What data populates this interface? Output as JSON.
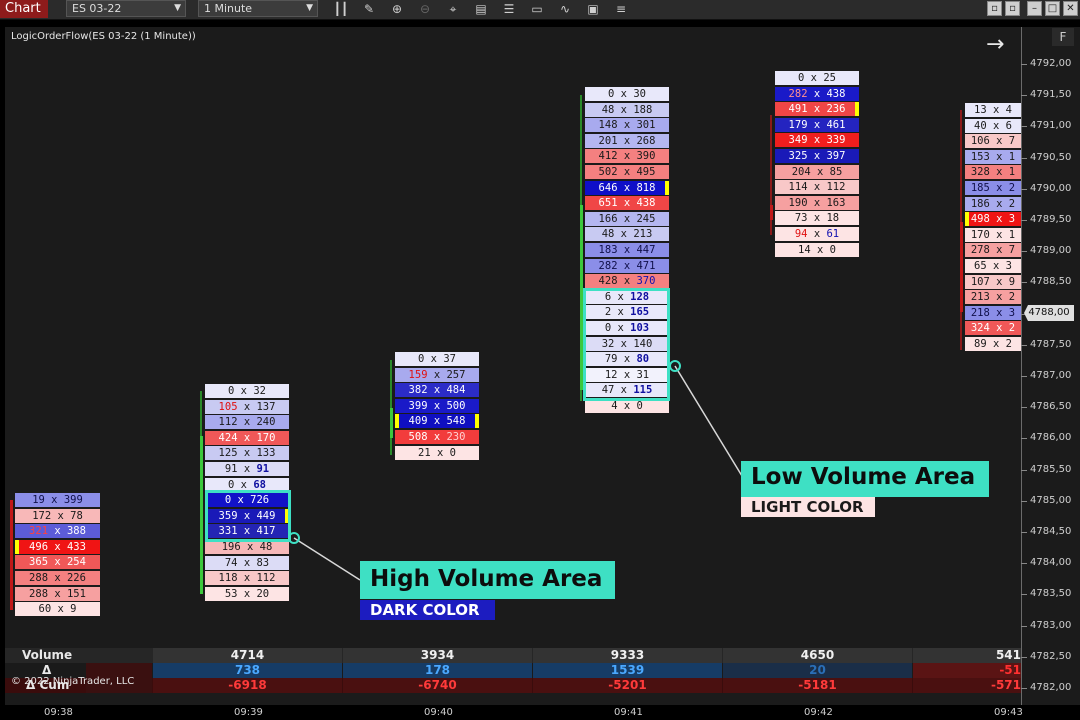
{
  "toolbar": {
    "app_tab": "Chart",
    "instrument": "ES 03-22",
    "interval": "1 Minute",
    "icons": [
      "bar-style-icon",
      "draw-icon",
      "zoom-in-icon",
      "zoom-out-icon",
      "crosshair-icon",
      "data-box-icon",
      "properties-icon",
      "templates-icon",
      "strategy-icon",
      "indicators-icon",
      "menu-icon"
    ],
    "window_buttons": [
      "minimize",
      "restore",
      "close"
    ]
  },
  "chart": {
    "title": "LogicOrderFlow(ES 03-22 (1 Minute))",
    "f_button": "F",
    "copyright": "© 2022 NinjaTrader, LLC",
    "current_price": "4788,00"
  },
  "price_axis": [
    "4792,00",
    "4791,50",
    "4791,00",
    "4790,50",
    "4790,00",
    "4789,50",
    "4789,00",
    "4788,50",
    "4788,00",
    "4787,50",
    "4787,00",
    "4786,50",
    "4786,00",
    "4785,50",
    "4785,00",
    "4784,50",
    "4784,00",
    "4783,50",
    "4783,00",
    "4782,50",
    "4782,00"
  ],
  "time_axis": [
    "09:38",
    "09:39",
    "09:40",
    "09:41",
    "09:42",
    "09:43"
  ],
  "bars": [
    {
      "cells": [
        {
          "bid": "19",
          "ask": "399",
          "bg": "#8b8ee8",
          "fg": "#10104a"
        },
        {
          "bid": "172",
          "ask": "78",
          "bg": "#f8b8b8",
          "fg": "#1a1a1a"
        },
        {
          "bid": "321",
          "ask": "388",
          "bg": "#5c5cd8",
          "fg": "#ffffff",
          "bid_fg": "#ff4040"
        },
        {
          "bid": "496",
          "ask": "433",
          "bg": "#f01414",
          "fg": "#ffffff",
          "marker": "left"
        },
        {
          "bid": "365",
          "ask": "254",
          "bg": "#f05858",
          "fg": "#ffffff"
        },
        {
          "bid": "288",
          "ask": "226",
          "bg": "#f48080",
          "fg": "#1a1a1a"
        },
        {
          "bid": "288",
          "ask": "151",
          "bg": "#f6a0a0",
          "fg": "#1a1a1a"
        },
        {
          "bid": "60",
          "ask": "9",
          "bg": "#fde4e4",
          "fg": "#1a1a1a"
        }
      ]
    },
    {
      "cells": [
        {
          "bid": "0",
          "ask": "32",
          "bg": "#e8e8fa",
          "fg": "#1a1a1a"
        },
        {
          "bid": "105",
          "ask": "137",
          "bg": "#c8caf2",
          "fg": "#1a1a1a",
          "bid_fg": "#e01010"
        },
        {
          "bid": "112",
          "ask": "240",
          "bg": "#a8aaee",
          "fg": "#1a1a1a"
        },
        {
          "bid": "424",
          "ask": "170",
          "bg": "#f05858",
          "fg": "#ffffff"
        },
        {
          "bid": "125",
          "ask": "133",
          "bg": "#c8caf2",
          "fg": "#1a1a1a"
        },
        {
          "bid": "91",
          "ask": "91",
          "bg": "#dcdcf6",
          "fg": "#1a1a1a",
          "ask_bold": true
        },
        {
          "bid": "0",
          "ask": "68",
          "bg": "#e8e8fa",
          "fg": "#1a1a1a",
          "ask_bold": true
        },
        {
          "bid": "0",
          "ask": "726",
          "bg": "#1212c8",
          "fg": "#ffffff"
        },
        {
          "bid": "359",
          "ask": "449",
          "bg": "#1a1ab8",
          "fg": "#ffffff",
          "marker": "right"
        },
        {
          "bid": "331",
          "ask": "417",
          "bg": "#2424b4",
          "fg": "#ffffff"
        },
        {
          "bid": "196",
          "ask": "48",
          "bg": "#f6b8b8",
          "fg": "#1a1a1a"
        },
        {
          "bid": "74",
          "ask": "83",
          "bg": "#dcdcf6",
          "fg": "#1a1a1a"
        },
        {
          "bid": "118",
          "ask": "112",
          "bg": "#f8c8c8",
          "fg": "#1a1a1a"
        },
        {
          "bid": "53",
          "ask": "20",
          "bg": "#fde4e4",
          "fg": "#1a1a1a"
        }
      ]
    },
    {
      "cells": [
        {
          "bid": "0",
          "ask": "37",
          "bg": "#e8e8fa",
          "fg": "#1a1a1a"
        },
        {
          "bid": "159",
          "ask": "257",
          "bg": "#a8aaee",
          "fg": "#1a1a1a",
          "bid_fg": "#e01010"
        },
        {
          "bid": "382",
          "ask": "484",
          "bg": "#2c2cc8",
          "fg": "#ffffff"
        },
        {
          "bid": "399",
          "ask": "500",
          "bg": "#1a1ac8",
          "fg": "#ffffff"
        },
        {
          "bid": "409",
          "ask": "548",
          "bg": "#0f0fc0",
          "fg": "#ffffff",
          "marker": "both"
        },
        {
          "bid": "508",
          "ask": "230",
          "bg": "#f23c3c",
          "fg": "#ffffff",
          "ask_fg": "#ffd0d0"
        },
        {
          "bid": "21",
          "ask": "0",
          "bg": "#fde4e4",
          "fg": "#1a1a1a"
        }
      ]
    },
    {
      "cells": [
        {
          "bid": "0",
          "ask": "30",
          "bg": "#e8e8fa",
          "fg": "#1a1a1a"
        },
        {
          "bid": "48",
          "ask": "188",
          "bg": "#c8caf2",
          "fg": "#1a1a1a"
        },
        {
          "bid": "148",
          "ask": "301",
          "bg": "#a8aaee",
          "fg": "#1a1a1a"
        },
        {
          "bid": "201",
          "ask": "268",
          "bg": "#b4b6f0",
          "fg": "#1a1a1a"
        },
        {
          "bid": "412",
          "ask": "390",
          "bg": "#f48080",
          "fg": "#1a1a1a"
        },
        {
          "bid": "502",
          "ask": "495",
          "bg": "#f48080",
          "fg": "#1a1a1a"
        },
        {
          "bid": "646",
          "ask": "818",
          "bg": "#0f0fc8",
          "fg": "#ffffff",
          "marker": "right"
        },
        {
          "bid": "651",
          "ask": "438",
          "bg": "#f04646",
          "fg": "#ffffff"
        },
        {
          "bid": "166",
          "ask": "245",
          "bg": "#b4b6f0",
          "fg": "#1a1a1a"
        },
        {
          "bid": "48",
          "ask": "213",
          "bg": "#c8caf2",
          "fg": "#1a1a1a"
        },
        {
          "bid": "183",
          "ask": "447",
          "bg": "#8b8ee8",
          "fg": "#10104a"
        },
        {
          "bid": "282",
          "ask": "471",
          "bg": "#8b8ee8",
          "fg": "#10104a"
        },
        {
          "bid": "428",
          "ask": "370",
          "bg": "#f48080",
          "fg": "#1a1a1a",
          "ask_fg": "#1010b0"
        },
        {
          "bid": "6",
          "ask": "128",
          "bg": "#e8e8fa",
          "fg": "#1a1a1a",
          "ask_bold": true
        },
        {
          "bid": "2",
          "ask": "165",
          "bg": "#e8e8fa",
          "fg": "#1a1a1a",
          "ask_bold": true
        },
        {
          "bid": "0",
          "ask": "103",
          "bg": "#e8e8fa",
          "fg": "#1a1a1a",
          "ask_bold": true
        },
        {
          "bid": "32",
          "ask": "140",
          "bg": "#dcdcf6",
          "fg": "#1a1a1a"
        },
        {
          "bid": "79",
          "ask": "80",
          "bg": "#e8e8fa",
          "fg": "#1a1a1a",
          "ask_bold": true
        },
        {
          "bid": "12",
          "ask": "31",
          "bg": "#f2f2fc",
          "fg": "#1a1a1a"
        },
        {
          "bid": "47",
          "ask": "115",
          "bg": "#e8e8fa",
          "fg": "#1a1a1a",
          "ask_bold": true
        },
        {
          "bid": "4",
          "ask": "0",
          "bg": "#fde4e4",
          "fg": "#1a1a1a"
        }
      ]
    },
    {
      "cells": [
        {
          "bid": "0",
          "ask": "25",
          "bg": "#e8e8fa",
          "fg": "#1a1a1a"
        },
        {
          "bid": "282",
          "ask": "438",
          "bg": "#1a1ac8",
          "fg": "#ffffff",
          "bid_fg": "#ff9090"
        },
        {
          "bid": "491",
          "ask": "236",
          "bg": "#f04646",
          "fg": "#ffffff",
          "marker": "right"
        },
        {
          "bid": "179",
          "ask": "461",
          "bg": "#2424c0",
          "fg": "#ffffff"
        },
        {
          "bid": "349",
          "ask": "339",
          "bg": "#f01e1e",
          "fg": "#ffffff"
        },
        {
          "bid": "325",
          "ask": "397",
          "bg": "#1a1ab8",
          "fg": "#ffffff"
        },
        {
          "bid": "204",
          "ask": "85",
          "bg": "#f6a0a0",
          "fg": "#1a1a1a"
        },
        {
          "bid": "114",
          "ask": "112",
          "bg": "#f8c8c8",
          "fg": "#1a1a1a"
        },
        {
          "bid": "190",
          "ask": "163",
          "bg": "#f6a0a0",
          "fg": "#1a1a1a"
        },
        {
          "bid": "73",
          "ask": "18",
          "bg": "#fde4e4",
          "fg": "#1a1a1a"
        },
        {
          "bid": "94",
          "ask": "61",
          "bg": "#fde4e4",
          "fg": "#1a1a1a",
          "bid_fg": "#e01010",
          "ask_fg": "#1010b0"
        },
        {
          "bid": "14",
          "ask": "0",
          "bg": "#fde4e4",
          "fg": "#1a1a1a"
        }
      ]
    },
    {
      "cells": [
        {
          "bid": "13",
          "ask": "4",
          "bg": "#e8e8fa",
          "fg": "#1a1a1a"
        },
        {
          "bid": "40",
          "ask": "6",
          "bg": "#e8e8fa",
          "fg": "#1a1a1a"
        },
        {
          "bid": "106",
          "ask": "7",
          "bg": "#f8c8c8",
          "fg": "#1a1a1a"
        },
        {
          "bid": "153",
          "ask": "1",
          "bg": "#a8aaee",
          "fg": "#1a1a1a"
        },
        {
          "bid": "328",
          "ask": "1",
          "bg": "#f48080",
          "fg": "#1a1a1a"
        },
        {
          "bid": "185",
          "ask": "2",
          "bg": "#8b8ee8",
          "fg": "#10104a"
        },
        {
          "bid": "186",
          "ask": "2",
          "bg": "#a8aaee",
          "fg": "#1a1a1a"
        },
        {
          "bid": "498",
          "ask": "3",
          "bg": "#f01414",
          "fg": "#ffffff",
          "marker": "left"
        },
        {
          "bid": "170",
          "ask": "1",
          "bg": "#fde4e4",
          "fg": "#1a1a1a"
        },
        {
          "bid": "278",
          "ask": "7",
          "bg": "#f6a0a0",
          "fg": "#1a1a1a"
        },
        {
          "bid": "65",
          "ask": "3",
          "bg": "#fde4e4",
          "fg": "#1a1a1a"
        },
        {
          "bid": "107",
          "ask": "9",
          "bg": "#f8c8c8",
          "fg": "#1a1a1a"
        },
        {
          "bid": "213",
          "ask": "2",
          "bg": "#f6a0a0",
          "fg": "#1a1a1a"
        },
        {
          "bid": "218",
          "ask": "3",
          "bg": "#8b8ee8",
          "fg": "#10104a"
        },
        {
          "bid": "324",
          "ask": "2",
          "bg": "#f05858",
          "fg": "#ffffff"
        },
        {
          "bid": "89",
          "ask": "2",
          "bg": "#fde4e4",
          "fg": "#1a1a1a"
        }
      ]
    }
  ],
  "stats": {
    "labels": {
      "volume": "Volume",
      "delta": "Δ",
      "cum_delta": "Δ Cum"
    },
    "columns": [
      {
        "volume": "4714",
        "delta": "738",
        "cum": "-6918",
        "delta_color": "#4aa8ff",
        "delta_bg": "#163c66"
      },
      {
        "volume": "3934",
        "delta": "178",
        "cum": "-6740",
        "delta_color": "#4aa8ff",
        "delta_bg": "#163c66"
      },
      {
        "volume": "9333",
        "delta": "1539",
        "cum": "-5201",
        "delta_color": "#4aa8ff",
        "delta_bg": "#163c66"
      },
      {
        "volume": "4650",
        "delta": "20",
        "cum": "-5181",
        "delta_color": "#2a6fb8",
        "delta_bg": "#1a2e48"
      },
      {
        "volume": "541",
        "delta": "-51",
        "cum": "-571",
        "delta_color": "#ff3030",
        "delta_bg": "#5a1414"
      }
    ]
  },
  "callouts": {
    "high": {
      "title": "High Volume Area",
      "subtitle": "DARK COLOR",
      "subtitle_bg": "#1c1cc0",
      "subtitle_fg": "#ffffff"
    },
    "low": {
      "title": "Low Volume Area",
      "subtitle": "LIGHT COLOR",
      "subtitle_bg": "#fde4e4",
      "subtitle_fg": "#1a1a1a"
    }
  },
  "colors": {
    "accent": "#3ee0c4",
    "chart_bg": "#1b1b1b",
    "app_tab": "#8e1b1b"
  }
}
